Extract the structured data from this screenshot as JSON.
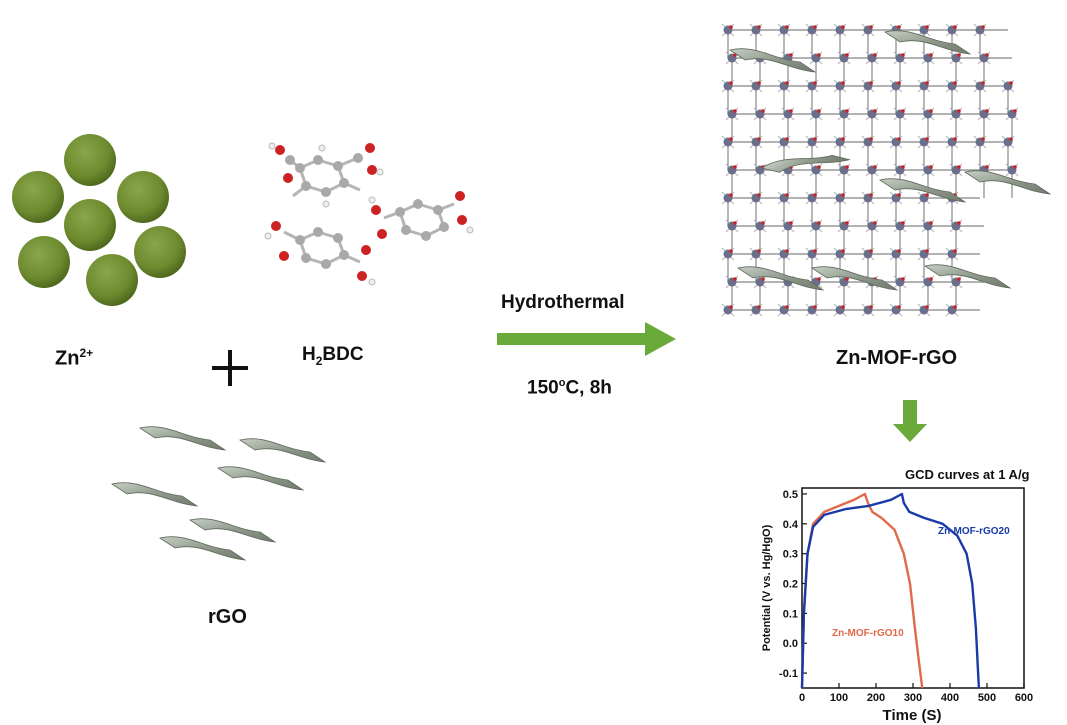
{
  "reactants": {
    "zn_label": "Zn",
    "zn_charge": "2+",
    "linker_label_prefix": "H",
    "linker_label_sub": "2",
    "linker_label_suffix": "BDC",
    "rgo_label": "rGO"
  },
  "reaction": {
    "method": "Hydrothermal",
    "temperature": "150",
    "temperature_sup": "o",
    "temperature_unit": "C, 8h"
  },
  "product": {
    "label": "Zn-MOF-rGO"
  },
  "colors": {
    "zinc_sphere": "#6e8a2e",
    "arrow": "#6aaa3a",
    "sheet": "#9aa597",
    "oxygen": "#cc2222",
    "carbon": "#9a9a9a",
    "series_rgo10": "#e06a4a",
    "series_rgo20": "#1a3aa8"
  },
  "chart_data": {
    "type": "line",
    "title": "GCD curves at 1 A/g",
    "xlabel": "Time (S)",
    "ylabel": "Potential (V vs. Hg/HgO)",
    "xlim": [
      0,
      600
    ],
    "ylim": [
      -0.15,
      0.52
    ],
    "xticks": [
      "0",
      "100",
      "200",
      "300",
      "400",
      "500",
      "600"
    ],
    "yticks": [
      "-0.1",
      "0.0",
      "0.1",
      "0.2",
      "0.3",
      "0.4",
      "0.5"
    ],
    "series": [
      {
        "name": "Zn-MOF-rGO10",
        "color": "#e06a4a",
        "x": [
          0,
          5,
          15,
          30,
          60,
          100,
          140,
          170,
          178,
          190,
          215,
          250,
          275,
          292,
          305,
          315,
          322,
          325
        ],
        "y": [
          -0.15,
          0.1,
          0.3,
          0.4,
          0.44,
          0.46,
          0.48,
          0.5,
          0.47,
          0.44,
          0.42,
          0.38,
          0.3,
          0.2,
          0.05,
          -0.05,
          -0.12,
          -0.15
        ]
      },
      {
        "name": "Zn-MOF-rGO20",
        "color": "#1a3aa8",
        "x": [
          0,
          5,
          15,
          30,
          60,
          120,
          180,
          240,
          270,
          275,
          290,
          330,
          380,
          420,
          445,
          460,
          470,
          475,
          478
        ],
        "y": [
          -0.15,
          0.1,
          0.3,
          0.39,
          0.43,
          0.45,
          0.46,
          0.48,
          0.5,
          0.47,
          0.44,
          0.42,
          0.4,
          0.36,
          0.3,
          0.2,
          0.05,
          -0.08,
          -0.15
        ]
      }
    ]
  }
}
